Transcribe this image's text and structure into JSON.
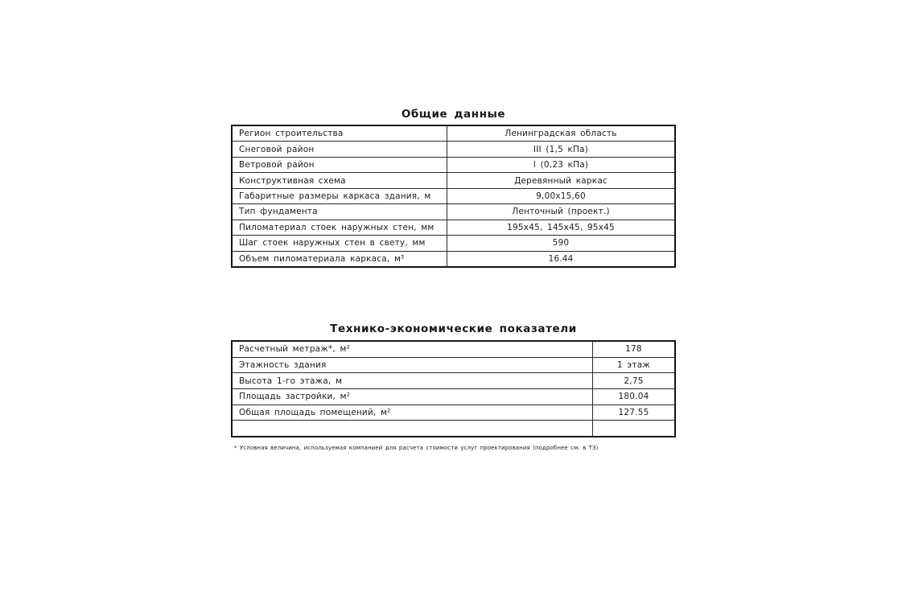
{
  "page": {
    "background": "#ffffff",
    "text_color": "#1c1c1c",
    "border_color": "#151515"
  },
  "general_table": {
    "title": "Общие данные",
    "rows": [
      {
        "label": "Регион строительства",
        "value": "Ленинградская область"
      },
      {
        "label": "Снеговой район",
        "value": "III (1,5 кПа)"
      },
      {
        "label": "Ветровой район",
        "value": "I (0,23 кПа)"
      },
      {
        "label": "Конструктивная схема",
        "value": "Деревянный каркас"
      },
      {
        "label": "Габаритные размеры каркаса здания, м",
        "value": "9,00x15,60"
      },
      {
        "label": "Тип фундамента",
        "value": "Ленточный (проект.)"
      },
      {
        "label": "Пиломатериал стоек наружных стен, мм",
        "value": "195x45, 145x45, 95x45"
      },
      {
        "label": "Шаг стоек наружных стен в свету, мм",
        "value": "590"
      },
      {
        "label": "Объем пиломатериала каркаса, м³",
        "value": "16.44"
      }
    ]
  },
  "tep_table": {
    "title": "Технико-экономические показатели",
    "rows": [
      {
        "label": "Расчетный метраж*, м²",
        "value": "178"
      },
      {
        "label": "Этажность здания",
        "value": "1 этаж"
      },
      {
        "label": "Высота 1-го этажа, м",
        "value": "2,75"
      },
      {
        "label": "Площадь застройки, м²",
        "value": "180.04"
      },
      {
        "label": "Общая площадь помещений, м²",
        "value": "127.55"
      },
      {
        "label": "",
        "value": ""
      }
    ]
  },
  "footnote": "* Условная величина, используемая компанией для расчета стоимости услуг проектирования (подробнее см. в ТЗ)"
}
